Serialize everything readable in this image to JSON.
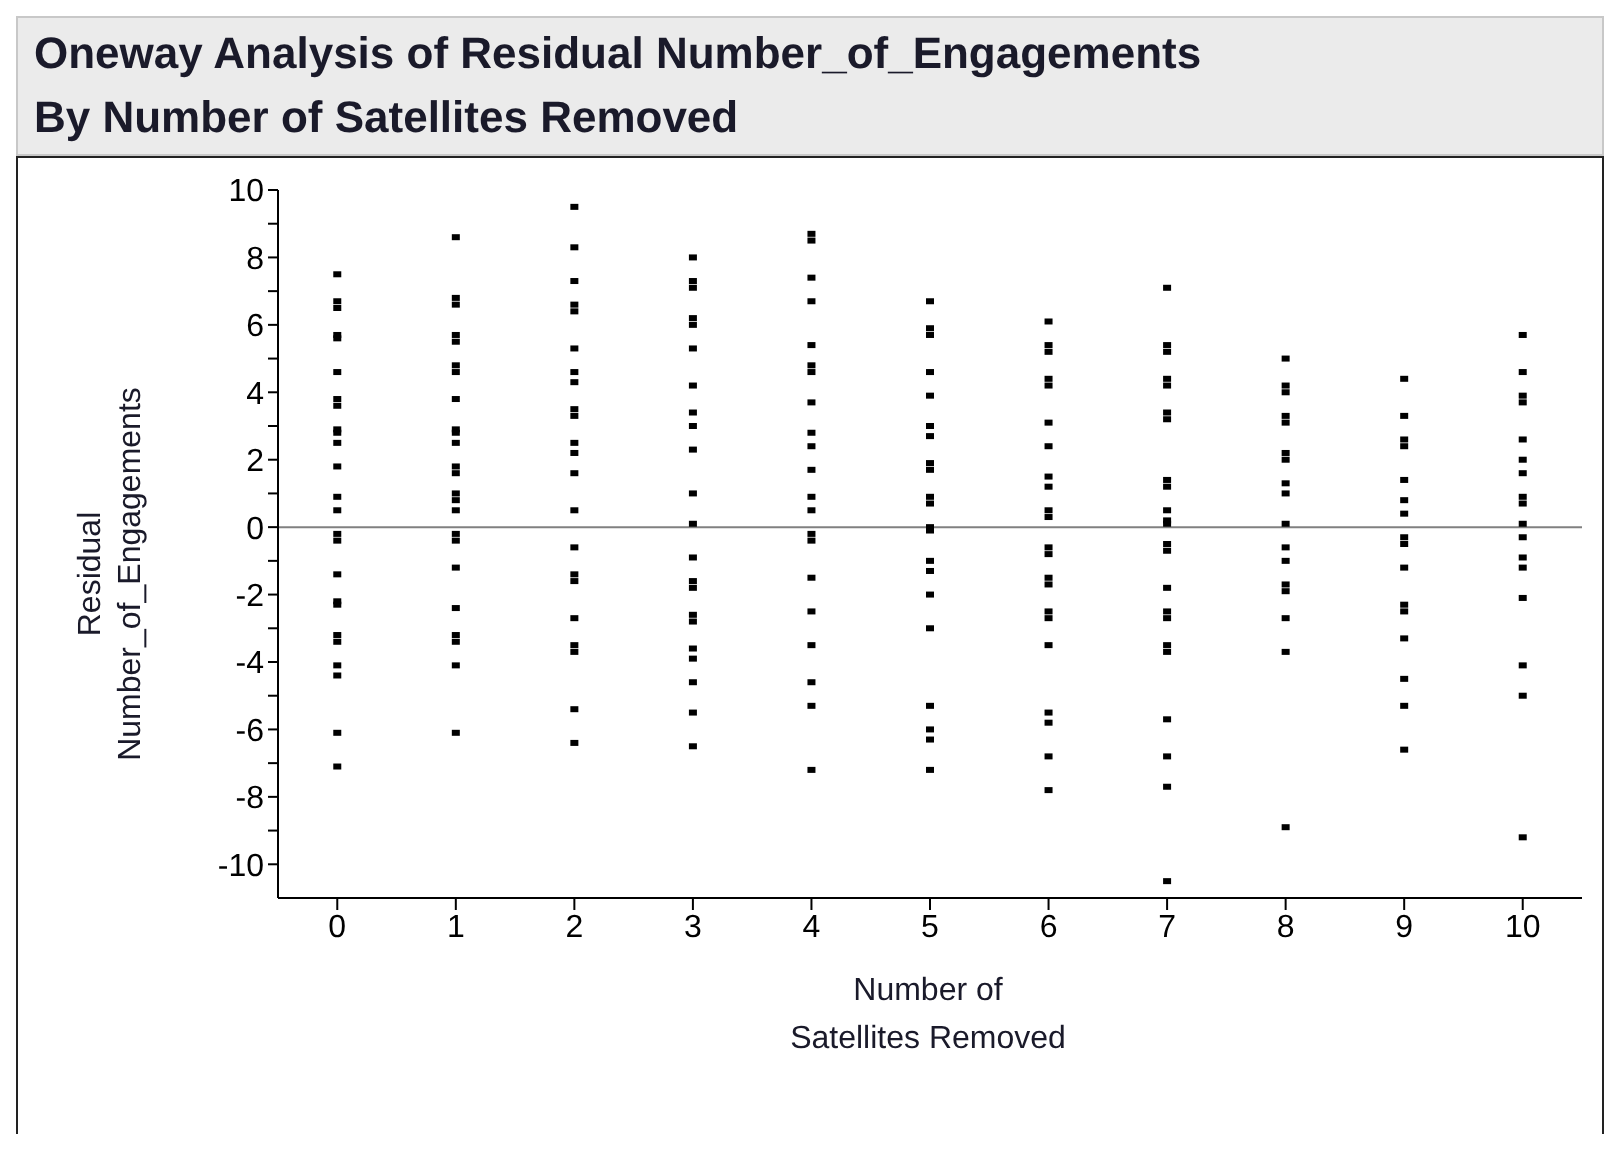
{
  "chart_data": {
    "type": "scatter",
    "title": "Oneway Analysis of Residual  Number_of_Engagements",
    "subtitle": "By Number of Satellites Removed",
    "xlabel": "Number of Satellites Removed",
    "ylabel": "Residual Number_of_Engagements",
    "color": "#000000",
    "marker": "square",
    "grid": false,
    "legend": false,
    "x": [
      0,
      0,
      0,
      0,
      0,
      0,
      0,
      0,
      0,
      0,
      0,
      0,
      0,
      0,
      0,
      0,
      0,
      0,
      0,
      0,
      0,
      0,
      0,
      0,
      0,
      1,
      1,
      1,
      1,
      1,
      1,
      1,
      1,
      1,
      1,
      1,
      1,
      1,
      1,
      1,
      1,
      1,
      1,
      1,
      1,
      1,
      1,
      1,
      1,
      2,
      2,
      2,
      2,
      2,
      2,
      2,
      2,
      2,
      2,
      2,
      2,
      2,
      2,
      2,
      2,
      2,
      2,
      2,
      2,
      2,
      2,
      3,
      3,
      3,
      3,
      3,
      3,
      3,
      3,
      3,
      3,
      3,
      3,
      3,
      3,
      3,
      3,
      3,
      3,
      3,
      3,
      3,
      3,
      4,
      4,
      4,
      4,
      4,
      4,
      4,
      4,
      4,
      4,
      4,
      4,
      4,
      4,
      4,
      4,
      4,
      4,
      4,
      4,
      4,
      5,
      5,
      5,
      5,
      5,
      5,
      5,
      5,
      5,
      5,
      5,
      5,
      5,
      5,
      5,
      5,
      5,
      5,
      5,
      5,
      5,
      6,
      6,
      6,
      6,
      6,
      6,
      6,
      6,
      6,
      6,
      6,
      6,
      6,
      6,
      6,
      6,
      6,
      6,
      6,
      6,
      6,
      6,
      7,
      7,
      7,
      7,
      7,
      7,
      7,
      7,
      7,
      7,
      7,
      7,
      7,
      7,
      7,
      7,
      7,
      7,
      7,
      7,
      7,
      7,
      7,
      8,
      8,
      8,
      8,
      8,
      8,
      8,
      8,
      8,
      8,
      8,
      8,
      8,
      8,
      8,
      8,
      8,
      9,
      9,
      9,
      9,
      9,
      9,
      9,
      9,
      9,
      9,
      9,
      9,
      9,
      9,
      9,
      9,
      10,
      10,
      10,
      10,
      10,
      10,
      10,
      10,
      10,
      10,
      10,
      10,
      10,
      10,
      10,
      10,
      10
    ],
    "values": [
      7.5,
      6.7,
      6.5,
      5.7,
      5.6,
      4.6,
      3.8,
      3.6,
      2.9,
      2.8,
      2.5,
      1.8,
      0.9,
      0.5,
      -0.2,
      -0.4,
      -1.4,
      -2.2,
      -2.3,
      -3.2,
      -3.4,
      -4.1,
      -4.4,
      -6.1,
      -7.1,
      8.6,
      6.8,
      6.6,
      5.7,
      5.5,
      4.8,
      4.6,
      3.8,
      2.9,
      2.8,
      2.5,
      1.8,
      1.6,
      1.0,
      0.8,
      0.5,
      -0.2,
      -0.4,
      -1.2,
      -2.4,
      -3.2,
      -3.4,
      -4.1,
      -6.1,
      9.5,
      8.3,
      7.3,
      6.6,
      6.4,
      5.3,
      4.6,
      4.3,
      3.5,
      3.3,
      2.5,
      2.2,
      1.6,
      0.5,
      -0.6,
      -1.4,
      -1.6,
      -2.7,
      -3.5,
      -3.7,
      -5.4,
      -6.4,
      8.0,
      7.3,
      7.1,
      6.2,
      6.0,
      5.3,
      4.2,
      3.4,
      3.0,
      2.3,
      1.0,
      0.1,
      -0.9,
      -1.6,
      -1.8,
      -2.6,
      -2.8,
      -3.6,
      -3.9,
      -4.6,
      -5.5,
      -6.5,
      8.7,
      8.5,
      7.4,
      6.7,
      5.4,
      4.8,
      4.6,
      3.7,
      2.8,
      2.4,
      1.7,
      0.9,
      0.5,
      -0.2,
      -0.4,
      -1.5,
      -2.5,
      -3.5,
      -4.6,
      -5.3,
      -7.2,
      6.7,
      5.9,
      5.7,
      4.6,
      3.9,
      3.0,
      2.7,
      1.9,
      1.7,
      0.9,
      0.7,
      0.0,
      -0.1,
      -1.0,
      -1.3,
      -2.0,
      -3.0,
      -5.3,
      -6.0,
      -6.3,
      -7.2,
      6.1,
      5.4,
      5.2,
      4.4,
      4.2,
      3.1,
      2.4,
      1.5,
      1.2,
      0.5,
      0.3,
      -0.6,
      -0.8,
      -1.5,
      -1.7,
      -2.5,
      -2.7,
      -3.5,
      -5.5,
      -5.8,
      -6.8,
      -7.8,
      7.1,
      5.4,
      5.2,
      4.4,
      4.2,
      3.4,
      3.2,
      1.4,
      1.2,
      0.5,
      0.2,
      0.1,
      -0.5,
      -0.7,
      -1.8,
      -2.5,
      -2.7,
      -3.5,
      -3.7,
      -5.7,
      -6.8,
      -7.7,
      -10.5,
      5.0,
      4.2,
      4.0,
      3.3,
      3.1,
      2.2,
      2.0,
      1.3,
      1.0,
      0.1,
      -0.6,
      -1.0,
      -1.7,
      -1.9,
      -2.7,
      -3.7,
      -8.9,
      4.4,
      3.3,
      2.6,
      2.4,
      1.4,
      0.8,
      0.4,
      -0.3,
      -0.5,
      -1.2,
      -2.3,
      -2.5,
      -3.3,
      -4.5,
      -5.3,
      -6.6,
      5.7,
      4.6,
      3.9,
      3.7,
      2.6,
      2.0,
      1.6,
      0.9,
      0.7,
      0.1,
      -0.3,
      -0.9,
      -1.2,
      -2.1,
      -4.1,
      -5.0,
      -9.2
    ],
    "xlim": [
      -0.5,
      10.5
    ],
    "xticks": [
      0,
      1,
      2,
      3,
      4,
      5,
      6,
      7,
      8,
      9,
      10
    ],
    "ylim": [
      -11,
      10
    ],
    "yticks": [
      -10,
      {
        "value": -9,
        "label": null
      },
      -8,
      {
        "value": -7,
        "label": null
      },
      -6,
      {
        "value": -5,
        "label": null
      },
      -4,
      {
        "value": -3,
        "label": null
      },
      -2,
      {
        "value": -1,
        "label": null
      },
      0,
      {
        "value": 1,
        "label": null
      },
      2,
      {
        "value": 3,
        "label": null
      },
      4,
      {
        "value": 5,
        "label": null
      },
      6,
      {
        "value": 7,
        "label": null
      },
      8,
      {
        "value": 9,
        "label": null
      },
      10
    ],
    "ref_lines": [
      {
        "axis": "y",
        "value": 0,
        "color": "#808080"
      }
    ]
  }
}
